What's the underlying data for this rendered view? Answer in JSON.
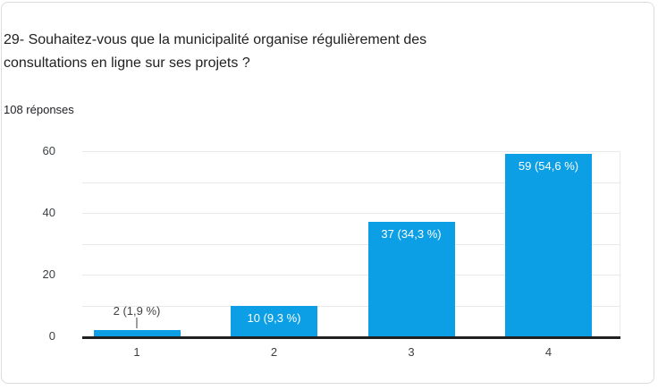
{
  "question": {
    "title": "29- Souhaitez-vous que la municipalité organise régulièrement des\nconsultations en ligne sur ses projets ?",
    "responses_label": "108 réponses"
  },
  "chart_data": {
    "type": "bar",
    "title": "",
    "xlabel": "",
    "ylabel": "",
    "categories": [
      "1",
      "2",
      "3",
      "4"
    ],
    "values": [
      2,
      10,
      37,
      59
    ],
    "bar_labels": [
      "2 (1,9 %)",
      "10 (9,3 %)",
      "37 (34,3 %)",
      "59 (54,6 %)"
    ],
    "ylim": [
      0,
      60
    ],
    "y_ticks": [
      0,
      20,
      40,
      60
    ],
    "grid_step": 10,
    "grid": true,
    "legend_position": "none",
    "bar_color": "#0c9fe5",
    "axis_color": "#212121",
    "gridline_color": "#e9e9e9",
    "tick_label_color": "#3c4043",
    "inside_label_color": "#ffffff",
    "outside_label_color": "#424242"
  }
}
